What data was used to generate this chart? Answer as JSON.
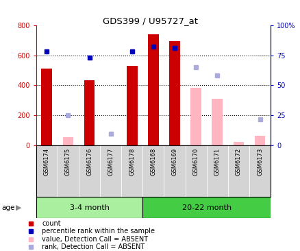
{
  "title": "GDS399 / U95727_at",
  "samples": [
    "GSM6174",
    "GSM6175",
    "GSM6176",
    "GSM6177",
    "GSM6178",
    "GSM6168",
    "GSM6169",
    "GSM6170",
    "GSM6171",
    "GSM6172",
    "GSM6173"
  ],
  "count_values": [
    510,
    null,
    435,
    null,
    530,
    740,
    695,
    null,
    null,
    null,
    null
  ],
  "count_absent": [
    null,
    55,
    null,
    null,
    null,
    null,
    null,
    385,
    310,
    22,
    65
  ],
  "rank_present": [
    78,
    null,
    73,
    null,
    78,
    82,
    81,
    null,
    null,
    null,
    null
  ],
  "rank_absent": [
    null,
    25,
    null,
    10,
    null,
    null,
    null,
    65,
    58,
    null,
    22
  ],
  "ylim_left": [
    0,
    800
  ],
  "ylim_right": [
    0,
    100
  ],
  "yticks_left": [
    0,
    200,
    400,
    600,
    800
  ],
  "yticks_right": [
    0,
    25,
    50,
    75,
    100
  ],
  "yticklabels_left": [
    "0",
    "200",
    "400",
    "600",
    "800"
  ],
  "yticklabels_right": [
    "0",
    "25",
    "50",
    "75",
    "100%"
  ],
  "group1_label": "3-4 month",
  "group1_count": 5,
  "group1_color": "#AAEEA0",
  "group2_label": "20-22 month",
  "group2_count": 6,
  "group2_color": "#44CC44",
  "bar_width": 0.5,
  "color_count_present": "#CC0000",
  "color_count_absent": "#FFB6C1",
  "color_rank_present": "#0000BB",
  "color_rank_absent": "#AAAADD",
  "bg_label": "#D4D4D4",
  "dotted_line_color": "black",
  "legend_items": [
    {
      "color": "#CC0000",
      "marker": "s",
      "label": "count"
    },
    {
      "color": "#0000BB",
      "marker": "s",
      "label": "percentile rank within the sample"
    },
    {
      "color": "#FFB6C1",
      "marker": "s",
      "label": "value, Detection Call = ABSENT"
    },
    {
      "color": "#AAAADD",
      "marker": "s",
      "label": "rank, Detection Call = ABSENT"
    }
  ]
}
